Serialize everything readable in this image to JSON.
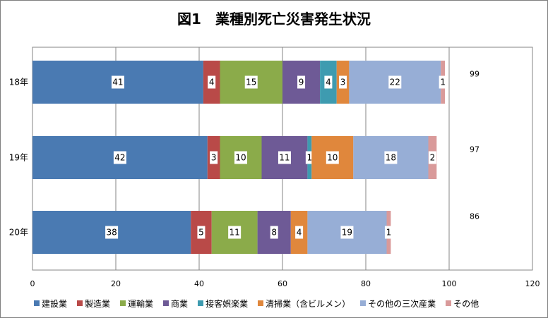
{
  "chart_data": {
    "type": "bar",
    "orientation": "horizontal",
    "stacked": true,
    "title": "図1　業種別死亡災害発生状況",
    "categories": [
      "18年",
      "19年",
      "20年"
    ],
    "xlim": [
      0,
      120
    ],
    "xticks": [
      0,
      20,
      40,
      60,
      80,
      100,
      120
    ],
    "grid": true,
    "legend_position": "bottom",
    "series": [
      {
        "name": "建設業",
        "color": "#4a7ab2",
        "values": [
          41,
          42,
          38
        ]
      },
      {
        "name": "製造業",
        "color": "#b94a48",
        "values": [
          4,
          3,
          5
        ]
      },
      {
        "name": "運輸業",
        "color": "#8bab4a",
        "values": [
          15,
          10,
          11
        ]
      },
      {
        "name": "商業",
        "color": "#6e5a96",
        "values": [
          9,
          11,
          8
        ]
      },
      {
        "name": "接客娯楽業",
        "color": "#3e9bb0",
        "values": [
          4,
          1,
          0
        ]
      },
      {
        "name": "清掃業（含ビルメン）",
        "color": "#e0873c",
        "values": [
          3,
          10,
          4
        ]
      },
      {
        "name": "その他の三次産業",
        "color": "#97aed6",
        "values": [
          22,
          18,
          19
        ]
      },
      {
        "name": "その他",
        "color": "#d99a9a",
        "values": [
          1,
          2,
          1
        ]
      }
    ],
    "totals": [
      99,
      97,
      86
    ]
  }
}
